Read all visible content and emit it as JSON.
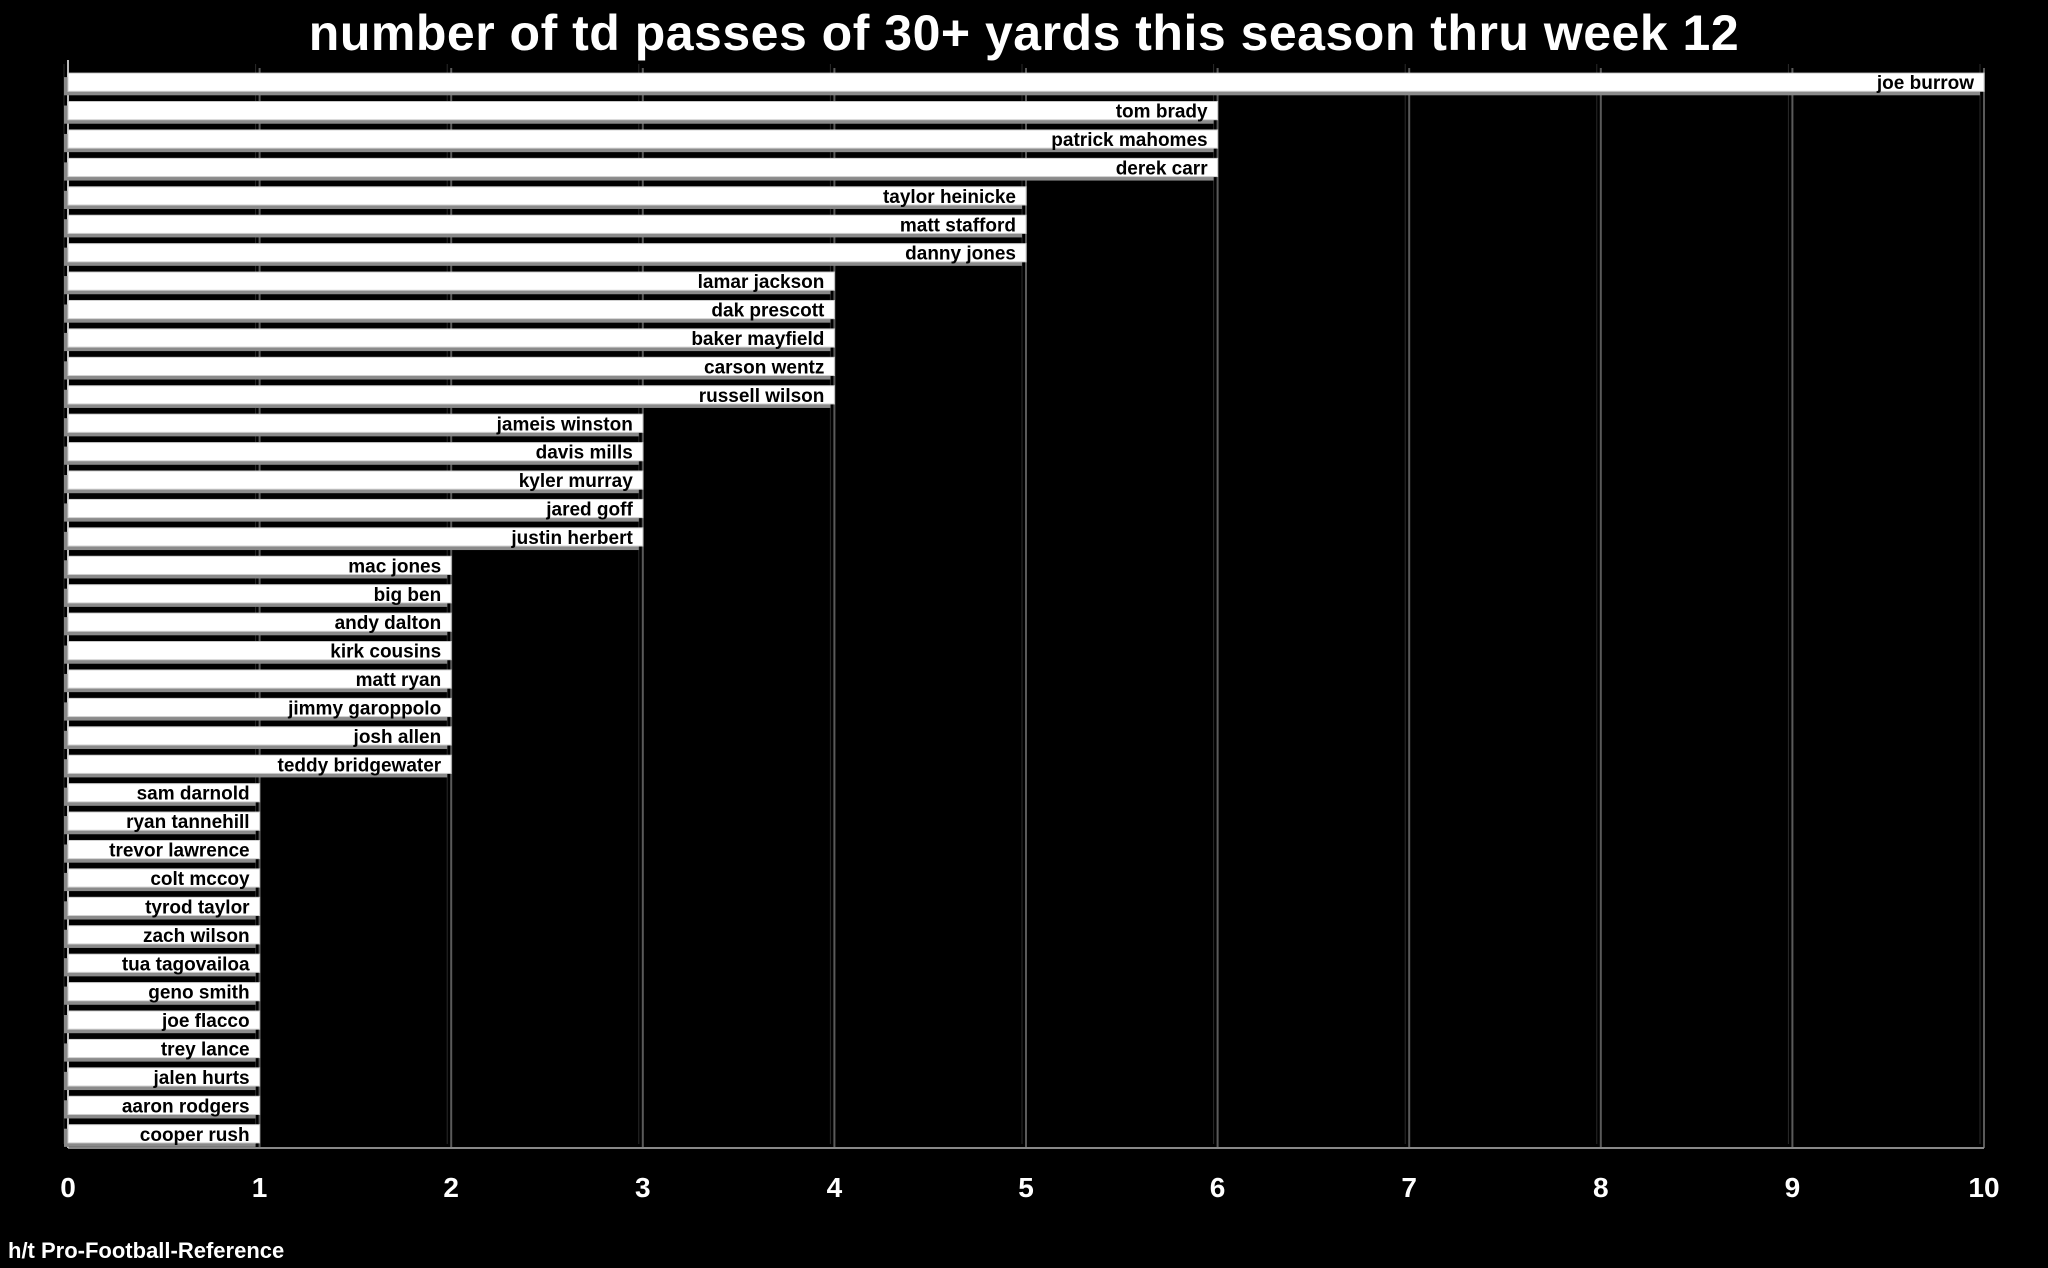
{
  "chart_data": {
    "type": "bar",
    "orientation": "horizontal",
    "title": "number of td passes of 30+ yards this season thru week 12",
    "xlabel": "",
    "ylabel": "",
    "xlim": [
      0,
      10
    ],
    "xticks": [
      "0",
      "1",
      "2",
      "3",
      "4",
      "5",
      "6",
      "7",
      "8",
      "9",
      "10"
    ],
    "grid": true,
    "legend": "none",
    "categories": [
      "joe burrow",
      "tom brady",
      "patrick mahomes",
      "derek carr",
      "taylor heinicke",
      "matt stafford",
      "danny jones",
      "lamar jackson",
      "dak prescott",
      "baker mayfield",
      "carson wentz",
      "russell wilson",
      "jameis winston",
      "davis mills",
      "kyler murray",
      "jared goff",
      "justin herbert",
      "mac jones",
      "big ben",
      "andy dalton",
      "kirk cousins",
      "matt ryan",
      "jimmy garoppolo",
      "josh allen",
      "teddy bridgewater",
      "sam darnold",
      "ryan tannehill",
      "trevor lawrence",
      "colt mccoy",
      "tyrod taylor",
      "zach wilson",
      "tua tagovailoa",
      "geno smith",
      "joe flacco",
      "trey lance",
      "jalen hurts",
      "aaron rodgers",
      "cooper rush"
    ],
    "values": [
      10,
      6,
      6,
      6,
      5,
      5,
      5,
      4,
      4,
      4,
      4,
      4,
      3,
      3,
      3,
      3,
      3,
      2,
      2,
      2,
      2,
      2,
      2,
      2,
      2,
      1,
      1,
      1,
      1,
      1,
      1,
      1,
      1,
      1,
      1,
      1,
      1,
      1
    ],
    "colors": {
      "background": "#000000",
      "bar": "#ffffff",
      "bar_shadow": "#8a8a8a",
      "grid": "#5a5a5a",
      "text": "#ffffff",
      "label": "#000000"
    }
  },
  "source": "h/t Pro-Football-Reference"
}
